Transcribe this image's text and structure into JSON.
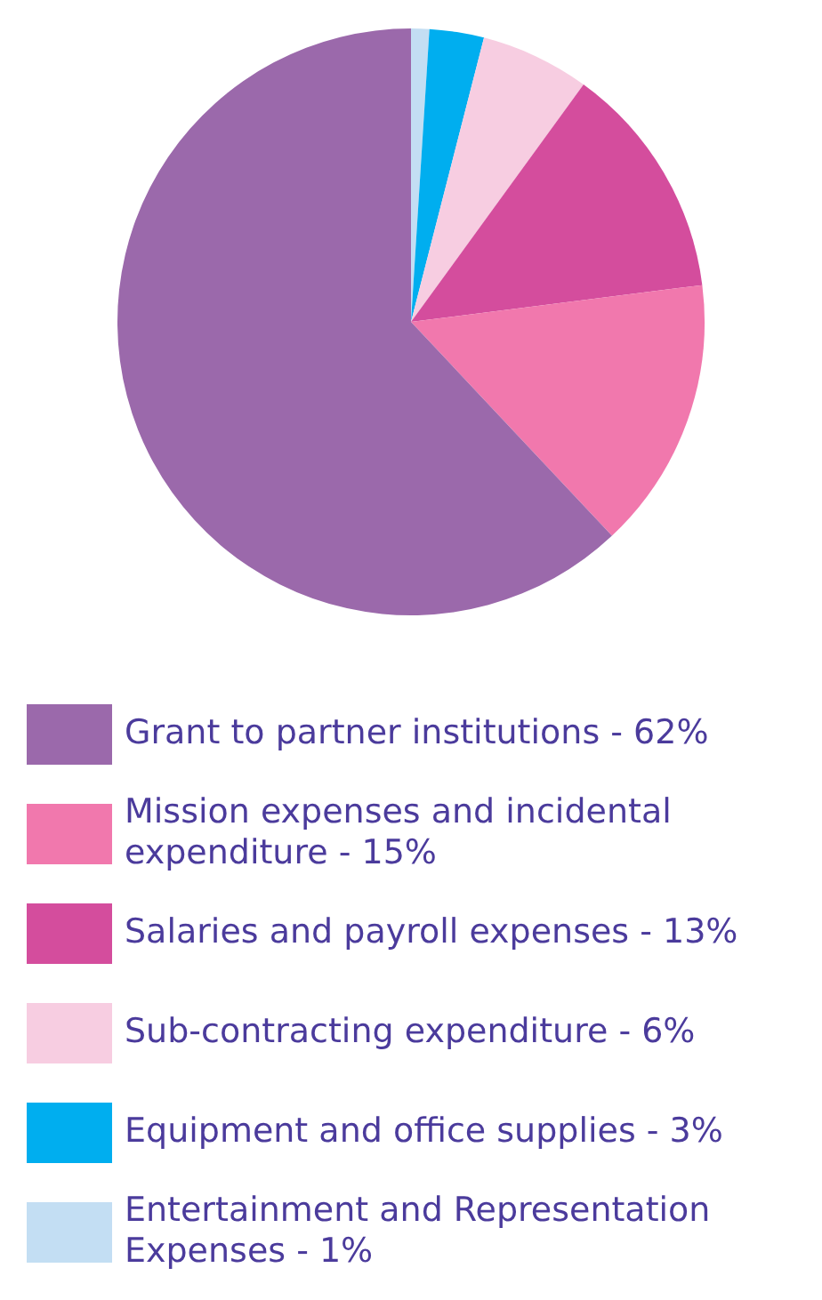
{
  "chart_data": {
    "type": "pie",
    "categories": [
      "Grant to partner institutions - 62%",
      "Mission expenses and incidental expenditure - 15%",
      "Salaries and payroll expenses - 13%",
      "Sub-contracting expenditure - 6%",
      "Equipment and office supplies - 3%",
      "Entertainment and Representation Expenses - 1%"
    ],
    "values": [
      62,
      15,
      13,
      6,
      3,
      1
    ],
    "colors": [
      "#9b69ab",
      "#f178ad",
      "#d44d9d",
      "#f7cde1",
      "#00aeef",
      "#c3def3"
    ],
    "legend": "bottom"
  }
}
